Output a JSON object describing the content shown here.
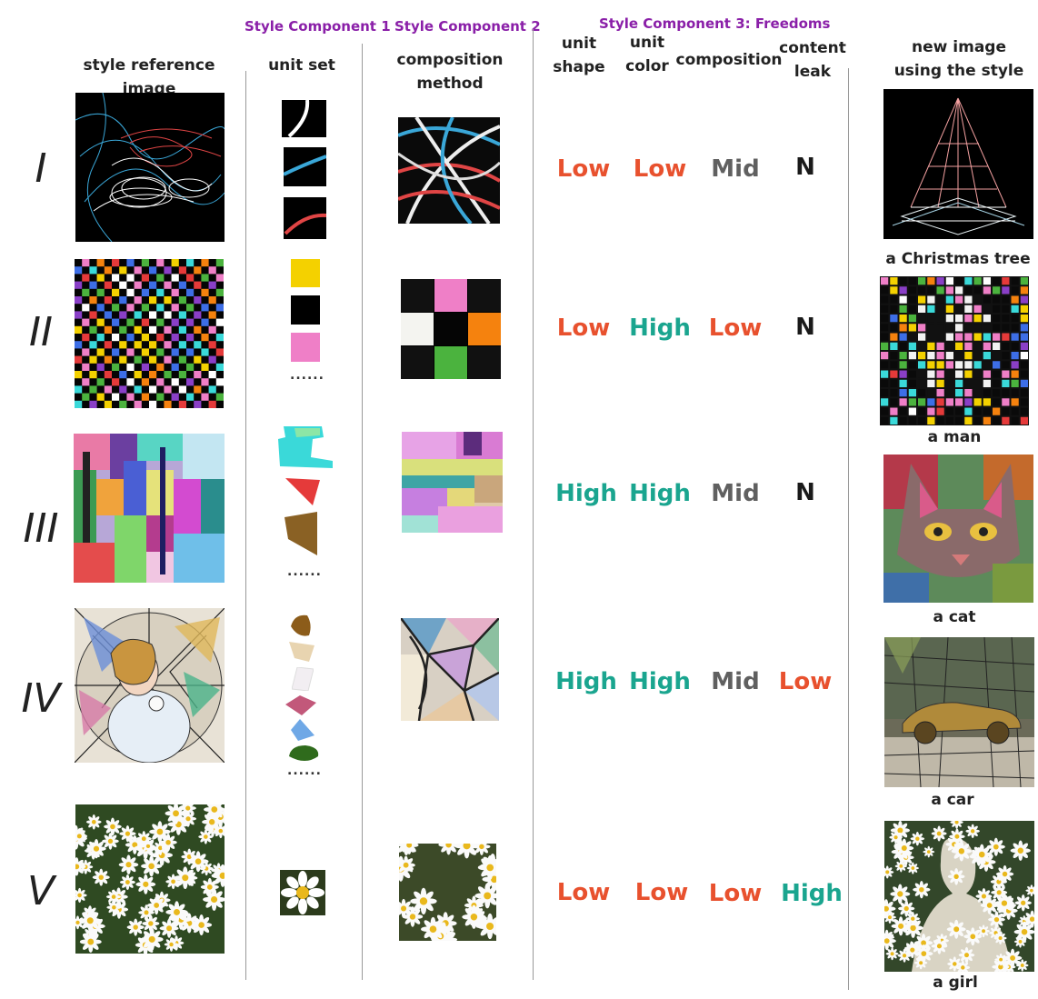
{
  "headers": {
    "style_ref": "style reference image",
    "unit_set": "unit set",
    "composition_method": "composition\nmethod",
    "unit_shape": "unit\nshape",
    "unit_color": "unit\ncolor",
    "composition": "composition",
    "content_leak": "content\nleak",
    "new_image": "new image\nusing the style"
  },
  "components": {
    "c1": "Style Component 1",
    "c2": "Style Component 2",
    "c3": "Style Component 3: Freedoms"
  },
  "rows": [
    {
      "roman": "I",
      "shape": "Low",
      "color": "Low",
      "composition": "Mid",
      "leak": "N",
      "caption": "a Christmas tree"
    },
    {
      "roman": "II",
      "shape": "Low",
      "color": "High",
      "composition": "Low",
      "leak": "N",
      "caption": "a man"
    },
    {
      "roman": "III",
      "shape": "High",
      "color": "High",
      "composition": "Mid",
      "leak": "N",
      "caption": "a cat"
    },
    {
      "roman": "IV",
      "shape": "High",
      "color": "High",
      "composition": "Mid",
      "leak": "Low",
      "caption": "a car"
    },
    {
      "roman": "V",
      "shape": "Low",
      "color": "Low",
      "composition": "Low",
      "leak": "High",
      "caption": "a girl"
    }
  ],
  "dots": "......",
  "colors": {
    "low": "#e8512e",
    "high": "#1aa58f",
    "mid": "#606060",
    "purple": "#8a1fa8"
  }
}
